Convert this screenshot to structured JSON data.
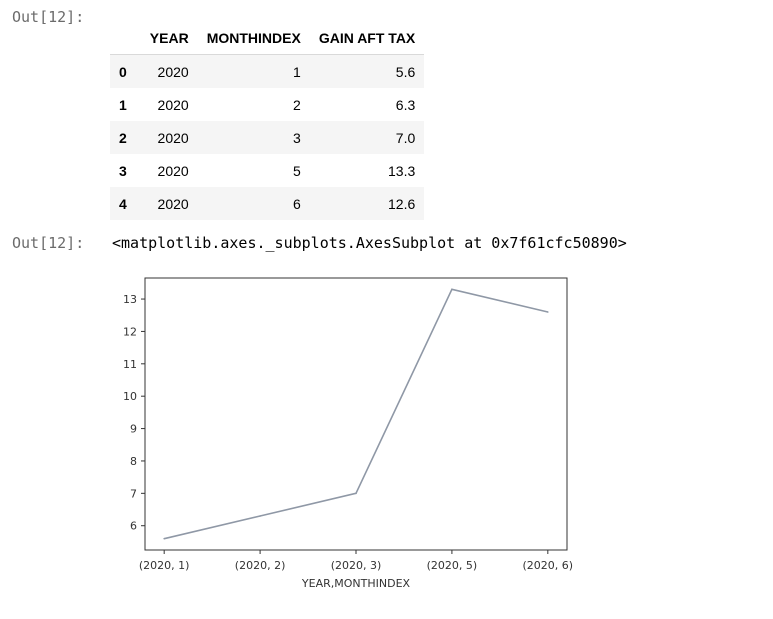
{
  "cells": [
    {
      "prompt": "Out[12]:"
    },
    {
      "prompt": "Out[12]:",
      "repr": "<matplotlib.axes._subplots.AxesSubplot at 0x7f61cfc50890>"
    }
  ],
  "table": {
    "columns": [
      "",
      "YEAR",
      "MONTHINDEX",
      "GAIN AFT TAX"
    ],
    "rows": [
      {
        "index": "0",
        "year": "2020",
        "month": "1",
        "gain": "5.6"
      },
      {
        "index": "1",
        "year": "2020",
        "month": "2",
        "gain": "6.3"
      },
      {
        "index": "2",
        "year": "2020",
        "month": "3",
        "gain": "7.0"
      },
      {
        "index": "3",
        "year": "2020",
        "month": "5",
        "gain": "13.3"
      },
      {
        "index": "4",
        "year": "2020",
        "month": "6",
        "gain": "12.6"
      }
    ]
  },
  "chart_data": {
    "type": "line",
    "categories": [
      "(2020, 1)",
      "(2020, 2)",
      "(2020, 3)",
      "(2020, 5)",
      "(2020, 6)"
    ],
    "x_ticks": [
      "(2020, 1)",
      "(2020, 2)",
      "(2020, 3)",
      "(2020, 5)",
      "(2020, 6)"
    ],
    "x_tick_positions": [
      0,
      1,
      2,
      3,
      4
    ],
    "x_range": [
      -0.2,
      4.2
    ],
    "series": [
      {
        "values": [
          5.6,
          6.3,
          7.0,
          13.3,
          12.6
        ],
        "color": "#8f98a6"
      }
    ],
    "y_ticks": [
      6,
      7,
      8,
      9,
      10,
      11,
      12,
      13
    ],
    "ylim": [
      5.25,
      13.65
    ],
    "title": "",
    "xlabel": "YEAR,MONTHINDEX",
    "ylabel": "",
    "grid": false,
    "legend": "none"
  }
}
